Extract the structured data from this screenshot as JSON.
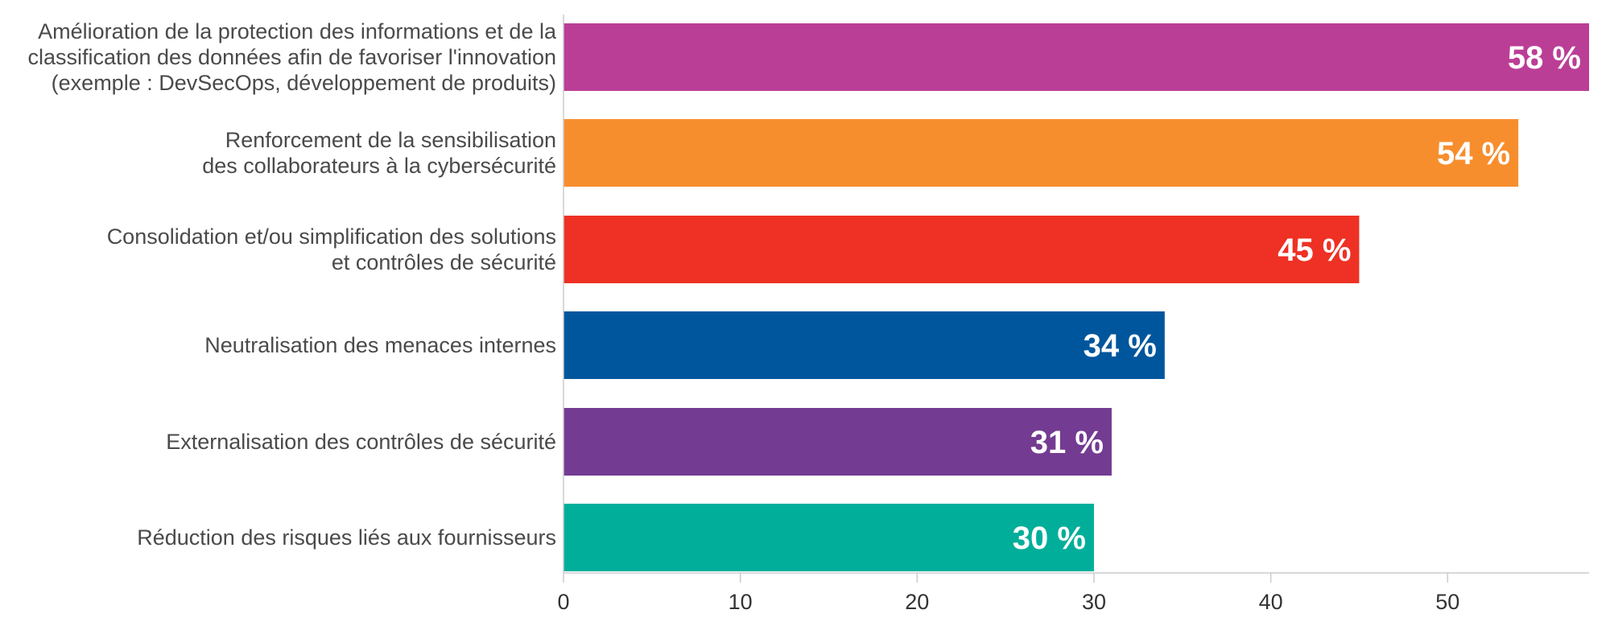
{
  "chart_data": {
    "type": "bar",
    "orientation": "horizontal",
    "categories": [
      [
        "Amélioration de la protection des informations et de la",
        "classification des données afin de favoriser l'innovation",
        "(exemple  : DevSecOps, développement de produits)"
      ],
      [
        "Renforcement de la sensibilisation",
        "des collaborateurs à la cybersécurité"
      ],
      [
        "Consolidation et/ou simplification des solutions",
        "et contrôles de sécurité"
      ],
      [
        "Neutralisation des menaces internes"
      ],
      [
        "Externalisation des contrôles de sécurité"
      ],
      [
        "Réduction des risques liés aux fournisseurs"
      ]
    ],
    "values": [
      58,
      54,
      45,
      34,
      31,
      30
    ],
    "value_labels": [
      "58 %",
      "54 %",
      "45 %",
      "34 %",
      "31 %",
      "30 %"
    ],
    "colors": [
      "#bb3e96",
      "#f78e2e",
      "#ee3124",
      "#00569c",
      "#743b92",
      "#00ae9a"
    ],
    "xlim": [
      0,
      58
    ],
    "xticks": [
      "0",
      "10",
      "20",
      "30",
      "40",
      "50"
    ],
    "xtick_values": [
      0,
      10,
      20,
      30,
      40,
      50
    ],
    "grid": false,
    "title": "",
    "xlabel": "",
    "ylabel": ""
  }
}
